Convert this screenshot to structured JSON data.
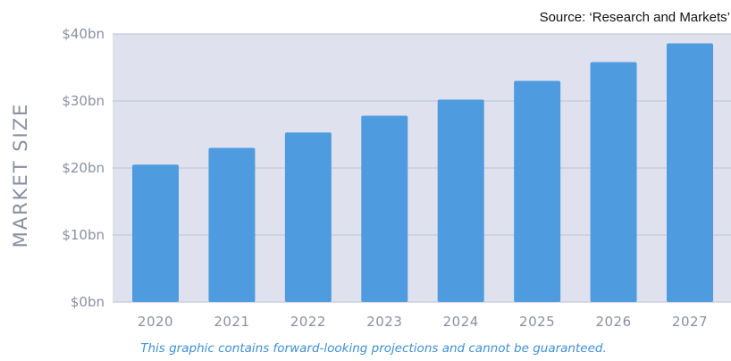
{
  "source": "Source: ‘Research and Markets’",
  "footnote": "This graphic contains forward-looking projections and cannot be guaranteed.",
  "colors": {
    "plot_background": "#dfe2ee",
    "gridline": "#c3c8d9",
    "bar": "#4f9be0",
    "axis_text": "#8a8fa0",
    "footnote": "#3f8fd4"
  },
  "chart_data": {
    "type": "bar",
    "title": "",
    "xlabel": "",
    "ylabel": "MARKET SIZE",
    "categories": [
      "2020",
      "2021",
      "2022",
      "2023",
      "2024",
      "2025",
      "2026",
      "2027"
    ],
    "values": [
      20.5,
      23,
      25.3,
      27.8,
      30.2,
      33,
      35.8,
      38.6
    ],
    "ylim": [
      0,
      40
    ],
    "yticks": [
      {
        "value": 0,
        "label": "$0bn"
      },
      {
        "value": 10,
        "label": "$10bn"
      },
      {
        "value": 20,
        "label": "$20bn"
      },
      {
        "value": 30,
        "label": "$30bn"
      },
      {
        "value": 40,
        "label": "$40bn"
      }
    ],
    "grid": true,
    "legend": "none"
  }
}
